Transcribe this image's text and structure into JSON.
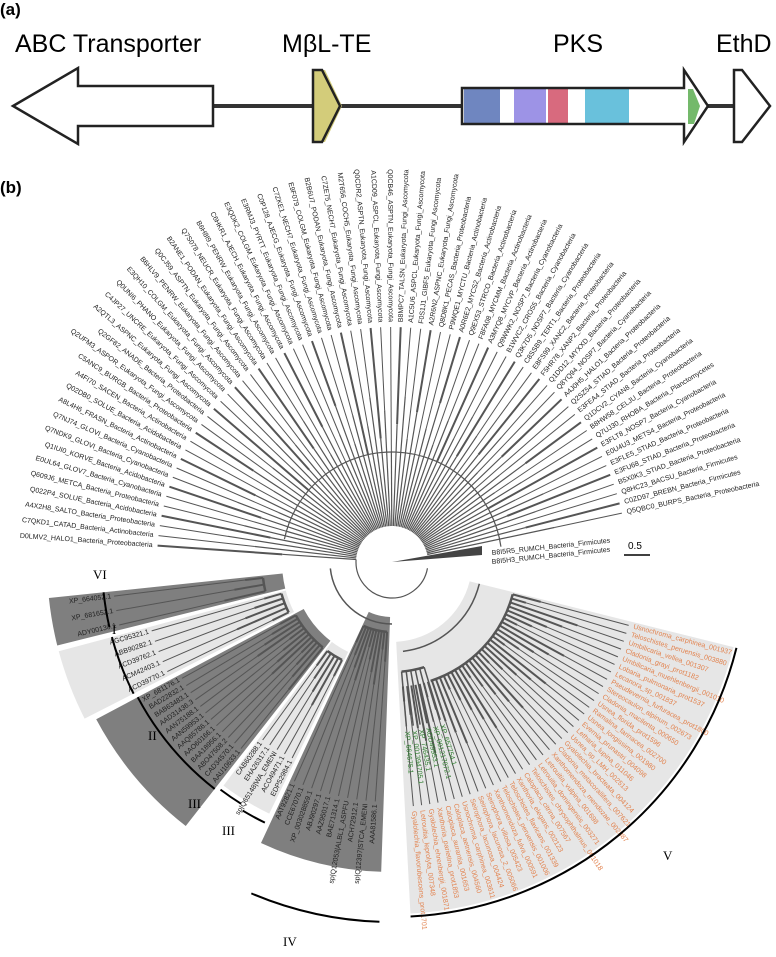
{
  "panel_a": {
    "label": "(a)",
    "genes": [
      {
        "name": "ABC Transporter"
      },
      {
        "name": "MβL-TE",
        "domain_color": "#d3cc7a"
      },
      {
        "name": "PKS",
        "domain_colors": [
          "#6f86c0",
          "#9d93e6",
          "#d86a7e",
          "#69c1dc",
          "#74b96b"
        ]
      },
      {
        "name": "EthD"
      }
    ]
  },
  "panel_b": {
    "label": "(b)",
    "scale_bar": "0.5",
    "clade_labels": [
      "VI",
      "I",
      "II",
      "III",
      "III",
      "IV",
      "V"
    ],
    "fan_leaves": [
      "D0LMV2_HALO1_Bacteria_Proteobacteria",
      "C7QKD1_CATAD_Bacteria_Actinobacteria",
      "A4X2H8_SALTO_Bacteria_Proteobacteria",
      "Q022P4_SOLUE_Bacteria_Acidobacteria",
      "Q609J6_METCA_Bacteria_Proteobacteria",
      "E0UL64_GLOV7_Bacteria_Cyanobacteria",
      "Q1IUI0_KORVE_Bacteria_Acidobacteria",
      "Q7NDK9_GLOVI_Bacteria_Cyanobacteria",
      "Q7NJ74_GLOVI_Bacteria_Cyanobacteria",
      "A8L4H6_FRASN_Bacteria_Actinobacteria",
      "Q02DB0_SOLUE_Bacteria_Acidobacteria",
      "A4FI70_SACEN_Bacteria_Actinobacteria",
      "C5ANC9_BURGB_Bacteria_Proteobacteria",
      "Q2UFM3_ASPOR_Eukaryota_Fungi_Ascomycota",
      "Q2GF82_ANADE_Bacteria_Proteobacteria",
      "A2QTL3_ASPNC_Eukaryota_Fungi_Ascomycota",
      "C4JP27_UNCRE_Eukaryota_Fungi_Ascomycota",
      "Q0UNI6_PHANO_Eukaryota_Fungi_Ascomycota",
      "E3QH10_COLGM_Eukaryota_Fungi_Ascomycota",
      "B6HLV9_PENRW_Eukaryota_Fungi_Ascomycota",
      "Q0CJ59_ASPTN_Eukaryota_Fungi_Ascomycota",
      "B2ANE1_PODAN_Eukaryota_Fungi_Ascomycota",
      "Q7S078_NEUCR_Eukaryota_Fungi_Ascomycota",
      "B6H8I9_PENRW_Eukaryota_Fungi_Ascomycota",
      "C6HKR1_AJECH_Eukaryota_Fungi_Ascomycota",
      "E3QDK2_COLGM_Eukaryota_Fungi_Ascomycota",
      "E3RMJ3_PYRTT_Eukaryota_Fungi_Ascomycota",
      "C0P128_AJECG_Eukaryota_Fungi_Ascomycota",
      "C7ZKE1_NECH7_Eukaryota_Fungi_Ascomycota",
      "E9F079_COLGM_Eukaryota_Fungi_Ascomycota",
      "B2B6U7_PODAN_Eukaryota_Fungi_Ascomycota",
      "C7ZE75_NECH7_Eukaryota_Fungi_Ascomycota",
      "M2T656_COCH5_Eukaryota_Fungi_Ascomycota",
      "Q0CDR2_ASPTN_Eukaryota_Fungi_Ascomycota",
      "A1CD09_ASPCL_Eukaryota_Fungi_Ascomycota",
      "Q0CB46_ASPTN_Eukaryota_Fungi_Ascomycota",
      "B8MPC7_TALSN_Eukaryota_Fungi_Ascomycota",
      "A1C5U6_ASPCL_Eukaryota_Fungi_Ascomycota",
      "F0S1J1_GIBF5_Eukaryota_Fungi_Ascomycota",
      "A2R6N2_ASPNC_Eukaryota_Fungi_Ascomycota",
      "Q8D8K1_PECAS_Bacteria_Proteobacteria",
      "P9WQE1_MYCTU_Bacteria_Actinobacteria",
      "A0R6E2_MYCS2_Bacteria_Actinobacteria",
      "Q9EX53_STRCO_Bacteria_Actinobacteria",
      "F8FA08_MYCMM_Bacteria_Actinobacteria",
      "A3MYQ8_MYCVP_Bacteria_Actinobacteria",
      "Q9WWK2_NOSP7_Bacteria_Cyanobacteria",
      "B1WVC2_CROS5_Bacteria_Cyanobacteria",
      "Q3K7D5_NOSP7_Bacteria_Cyanobacteria",
      "C8SSB9_TERT1_Bacteria_Proteobacteria",
      "E8FS99_XANC2_Bacteria_Proteobacteria",
      "F5HR78_XANP2_Bacteria_Proteobacteria",
      "Q1DD12_MYXXD_Bacteria_Proteobacteria",
      "Q8YQ94_NOSP7_Bacteria_Cyanobacteria",
      "A4J0H5_HALO1_Bacteria_Proteobacteria",
      "Q2SZ54_STIAD_Bacteria_Proteobacteria",
      "E3FEA4_STIAD_Bacteria_Proteobacteria",
      "Q1DCV2_CYAN8_Bacteria_Cyanobacteria",
      "B8HW58_CELJU_Bacteria_Proteobacteria",
      "Q7UJ30_RHOBA_Bacteria_Planctomycetes",
      "E3FLT8_NOSP7_Bacteria_Cyanobacteria",
      "E0U4U3_METS4_Bacteria_Proteobacteria",
      "E3FLE5_STIAD_Bacteria_Proteobacteria",
      "E3FU68_STIAD_Bacteria_Proteobacteria",
      "B5X0K3_STIAD_Bacteria_Proteobacteria",
      "Q8HC23_BACSU_Bacteria_Firmicutes",
      "C0ZD97_BREBN_Bacteria_Firmicutes",
      "Q5QBC0_BURPS_Bacteria_Proteobacteria"
    ],
    "root_leaves": [
      "B8I5R5_RUMCH_Bacteria_Firmicutes",
      "B8I5H3_RUMCH_Bacteria_Firmicutes"
    ],
    "clade_VI": [
      "XP_664052.1",
      "XP_681652.1",
      "ADY00130.1"
    ],
    "clade_I": [
      "AGC95321.1",
      "ABB90282.1",
      "ACD39762.1",
      "ACM42403.1",
      "ACD39770.1"
    ],
    "clade_II": [
      "XP_681176.1",
      "BAD22832.1",
      "BAB63483.1",
      "AAD31436.3",
      "AAN75188.1",
      "AAN59953.1",
      "AAQ65786.1",
      "AAO60166.1",
      "BAA18956.1",
      "ABO47508.2",
      "CAD34570.1",
      "AAU10633.1"
    ],
    "clade_III": [
      "CAB60288.1",
      "EHA26317.1",
      "sp|Q65148|WA_EMENI",
      "ACO49471.1",
      "EDP52984.1"
    ],
    "clade_IV": [
      "AAT92821.1",
      "CCE67070.1",
      "XP_003028859.1",
      "ABJ90297.1",
      "AAZ95017.1",
      "BAE71314.1",
      "sp|Q12053|ALBL1_ASPFU",
      "ACH72912.1",
      "sp|Q12397|STCA_EMENI",
      "AAA81586.1"
    ],
    "clade_V_green": [
      "XP_664675.1",
      "XP_001394705.1",
      "XP_746435.1",
      "ADD49953.1",
      "XP_001217072.1",
      "XP_657754.1"
    ],
    "clade_V_orange": [
      "Gyalolechia_flavorubescens_prot1701",
      "Letrouitia_leprolyta_007348",
      "Gyalolechia_ehrenbergii_001871",
      "Xanthoria_parietina_prot1853",
      "Caloplaca_aurantia_001653",
      "Caloplaca_aetnensis_004560",
      "Usnochroma_carphinea_003611",
      "Seirophora_lacunosa_004424",
      "Seirophora_lacunosa_2_005066",
      "Seirophora_villosa_005423",
      "Xanthomendoza_fulva_000591",
      "Teloschistes_peruensis_001006",
      "Teloschistes_flavicans_001339",
      "Xanthoria_elegans_002123",
      "Caloplaca_citrina_007567",
      "Teloschistes_chrysophthalmus_001018",
      "Letrouitia_domingensis_003271",
      "Letrouitia_vulpina_001698",
      "Xanthomendoza_mendozae_002887",
      "Cladonia_metacorallifera_007621",
      "Gyalolechia_bracteata_004124",
      "Usnea_sp_LMH_002513",
      "Letharia_lupina_011046",
      "Evernia_prunastri_004098",
      "Usnea_longissima_001980",
      "Ramalina_farinacea_002700",
      "Usnea_florida_prot1596",
      "Cladonia_macilenta_000650",
      "Stereocaulon_alpinum_002673",
      "Pseudevernia_furfuracea_prot1800",
      "Lecanora_sp_001837",
      "Lobaria_pulmonaria_prot1537",
      "Umbilicaria_muehlenbergii_001010",
      "Cladonia_grayi_prot1182",
      "Umbilicaria_vellea_001307",
      "Teloschistes_peruensis_003880",
      "Usnochroma_carphinea_001937"
    ]
  }
}
